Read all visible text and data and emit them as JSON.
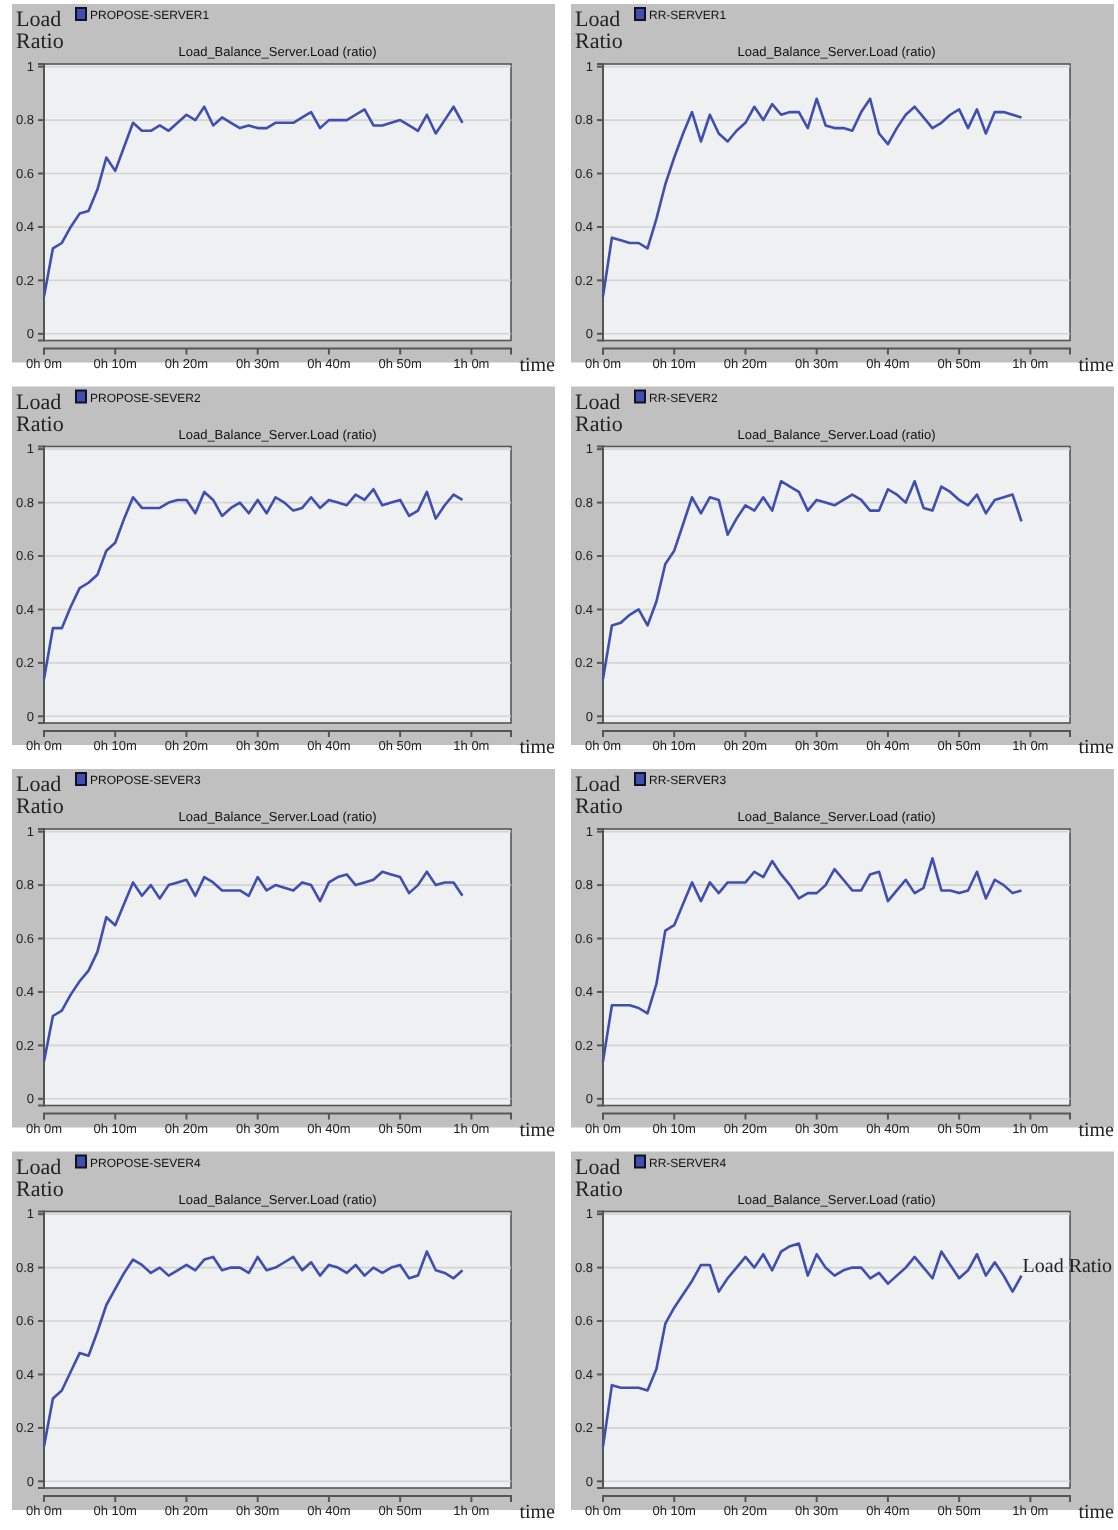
{
  "chart_data": [
    {
      "type": "line",
      "title": "Load_Balance_Server.Load (ratio)",
      "xlabel": "time",
      "ylabel": "Load Ratio",
      "legend": "top left",
      "grid": "y",
      "ylim": [
        -0.025,
        1.01
      ],
      "yticks": [
        0,
        0.2,
        0.4,
        0.6,
        0.8,
        1
      ],
      "categories": [
        "0h 0m",
        null,
        null,
        null,
        null,
        null,
        null,
        null,
        "0h 10m",
        null,
        null,
        null,
        null,
        null,
        null,
        null,
        "0h 20m",
        null,
        null,
        null,
        null,
        null,
        null,
        null,
        "0h 30m",
        null,
        null,
        null,
        null,
        null,
        null,
        null,
        "0h 40m",
        null,
        null,
        null,
        null,
        null,
        null,
        null,
        "0h 50m",
        null,
        null,
        null,
        null,
        null,
        null,
        null,
        "1h 0m",
        null,
        null,
        null,
        null
      ],
      "series": [
        {
          "name": "PROPOSE-SERVER1",
          "color": "#3f4fb0",
          "values": [
            0.14,
            0.32,
            0.34,
            0.4,
            0.45,
            0.46,
            0.54,
            0.66,
            0.61,
            0.7,
            0.79,
            0.76,
            0.76,
            0.78,
            0.76,
            0.79,
            0.82,
            0.8,
            0.85,
            0.78,
            0.81,
            0.79,
            0.77,
            0.78,
            0.77,
            0.77,
            0.79,
            0.79,
            0.79,
            0.81,
            0.83,
            0.77,
            0.8,
            0.8,
            0.8,
            0.82,
            0.84,
            0.78,
            0.78,
            0.79,
            0.8,
            0.78,
            0.76,
            0.82,
            0.75,
            0.8,
            0.85,
            0.79,
            null,
            null,
            null,
            null,
            null
          ]
        }
      ]
    },
    {
      "type": "line",
      "title": "Load_Balance_Server.Load (ratio)",
      "xlabel": "time",
      "ylabel": "Load Ratio",
      "legend": "top left",
      "grid": "y",
      "ylim": [
        -0.025,
        1.01
      ],
      "yticks": [
        0,
        0.2,
        0.4,
        0.6,
        0.8,
        1
      ],
      "categories": [
        "0h 0m",
        null,
        null,
        null,
        null,
        null,
        null,
        null,
        "0h 10m",
        null,
        null,
        null,
        null,
        null,
        null,
        null,
        "0h 20m",
        null,
        null,
        null,
        null,
        null,
        null,
        null,
        "0h 30m",
        null,
        null,
        null,
        null,
        null,
        null,
        null,
        "0h 40m",
        null,
        null,
        null,
        null,
        null,
        null,
        null,
        "0h 50m",
        null,
        null,
        null,
        null,
        null,
        null,
        null,
        "1h 0m",
        null,
        null,
        null,
        null
      ],
      "series": [
        {
          "name": "RR-SERVER1",
          "color": "#3f4fb0",
          "values": [
            0.14,
            0.36,
            0.35,
            0.34,
            0.34,
            0.32,
            0.43,
            0.56,
            0.66,
            0.75,
            0.83,
            0.72,
            0.82,
            0.75,
            0.72,
            0.76,
            0.79,
            0.85,
            0.8,
            0.86,
            0.82,
            0.83,
            0.83,
            0.77,
            0.88,
            0.78,
            0.77,
            0.77,
            0.76,
            0.83,
            0.88,
            0.75,
            0.71,
            0.77,
            0.82,
            0.85,
            0.81,
            0.77,
            0.79,
            0.82,
            0.84,
            0.77,
            0.84,
            0.75,
            0.83,
            0.83,
            0.82,
            0.81,
            null,
            null,
            null,
            null,
            null
          ]
        }
      ]
    },
    {
      "type": "line",
      "title": "Load_Balance_Server.Load (ratio)",
      "xlabel": "time",
      "ylabel": "Load Ratio",
      "legend": "top left",
      "grid": "y",
      "ylim": [
        -0.025,
        1.01
      ],
      "yticks": [
        0,
        0.2,
        0.4,
        0.6,
        0.8,
        1
      ],
      "categories": [
        "0h 0m",
        null,
        null,
        null,
        null,
        null,
        null,
        null,
        "0h 10m",
        null,
        null,
        null,
        null,
        null,
        null,
        null,
        "0h 20m",
        null,
        null,
        null,
        null,
        null,
        null,
        null,
        "0h 30m",
        null,
        null,
        null,
        null,
        null,
        null,
        null,
        "0h 40m",
        null,
        null,
        null,
        null,
        null,
        null,
        null,
        "0h 50m",
        null,
        null,
        null,
        null,
        null,
        null,
        null,
        "1h 0m",
        null,
        null,
        null,
        null
      ],
      "series": [
        {
          "name": "PROPOSE-SEVER2",
          "color": "#3f4fb0",
          "values": [
            0.14,
            0.33,
            0.33,
            0.41,
            0.48,
            0.5,
            0.53,
            0.62,
            0.65,
            0.74,
            0.82,
            0.78,
            0.78,
            0.78,
            0.8,
            0.81,
            0.81,
            0.76,
            0.84,
            0.81,
            0.75,
            0.78,
            0.8,
            0.76,
            0.81,
            0.76,
            0.82,
            0.8,
            0.77,
            0.78,
            0.82,
            0.78,
            0.81,
            0.8,
            0.79,
            0.83,
            0.81,
            0.85,
            0.79,
            0.8,
            0.81,
            0.75,
            0.77,
            0.84,
            0.74,
            0.79,
            0.83,
            0.81,
            null,
            null,
            null,
            null,
            null
          ]
        }
      ]
    },
    {
      "type": "line",
      "title": "Load_Balance_Server.Load (ratio)",
      "xlabel": "time",
      "ylabel": "Load Ratio",
      "legend": "top left",
      "grid": "y",
      "ylim": [
        -0.025,
        1.01
      ],
      "yticks": [
        0,
        0.2,
        0.4,
        0.6,
        0.8,
        1
      ],
      "categories": [
        "0h 0m",
        null,
        null,
        null,
        null,
        null,
        null,
        null,
        "0h 10m",
        null,
        null,
        null,
        null,
        null,
        null,
        null,
        "0h 20m",
        null,
        null,
        null,
        null,
        null,
        null,
        null,
        "0h 30m",
        null,
        null,
        null,
        null,
        null,
        null,
        null,
        "0h 40m",
        null,
        null,
        null,
        null,
        null,
        null,
        null,
        "0h 50m",
        null,
        null,
        null,
        null,
        null,
        null,
        null,
        "1h 0m",
        null,
        null,
        null,
        null
      ],
      "series": [
        {
          "name": "RR-SEVER2",
          "color": "#3f4fb0",
          "values": [
            0.14,
            0.34,
            0.35,
            0.38,
            0.4,
            0.34,
            0.43,
            0.57,
            0.62,
            0.72,
            0.82,
            0.76,
            0.82,
            0.81,
            0.68,
            0.74,
            0.79,
            0.77,
            0.82,
            0.77,
            0.88,
            0.86,
            0.84,
            0.77,
            0.81,
            0.8,
            0.79,
            0.81,
            0.83,
            0.81,
            0.77,
            0.77,
            0.85,
            0.83,
            0.8,
            0.88,
            0.78,
            0.77,
            0.86,
            0.84,
            0.81,
            0.79,
            0.83,
            0.76,
            0.81,
            0.82,
            0.83,
            0.73,
            null,
            null,
            null,
            null,
            null
          ]
        }
      ]
    },
    {
      "type": "line",
      "title": "Load_Balance_Server.Load (ratio)",
      "xlabel": "time",
      "ylabel": "Load Ratio",
      "legend": "top left",
      "grid": "y",
      "ylim": [
        -0.025,
        1.01
      ],
      "yticks": [
        0,
        0.2,
        0.4,
        0.6,
        0.8,
        1
      ],
      "categories": [
        "0h 0m",
        null,
        null,
        null,
        null,
        null,
        null,
        null,
        "0h 10m",
        null,
        null,
        null,
        null,
        null,
        null,
        null,
        "0h 20m",
        null,
        null,
        null,
        null,
        null,
        null,
        null,
        "0h 30m",
        null,
        null,
        null,
        null,
        null,
        null,
        null,
        "0h 40m",
        null,
        null,
        null,
        null,
        null,
        null,
        null,
        "0h 50m",
        null,
        null,
        null,
        null,
        null,
        null,
        null,
        "1h 0m",
        null,
        null,
        null,
        null
      ],
      "series": [
        {
          "name": "PROPOSE-SEVER3",
          "color": "#3f4fb0",
          "values": [
            0.14,
            0.31,
            0.33,
            0.39,
            0.44,
            0.48,
            0.55,
            0.68,
            0.65,
            0.73,
            0.81,
            0.76,
            0.8,
            0.75,
            0.8,
            0.81,
            0.82,
            0.76,
            0.83,
            0.81,
            0.78,
            0.78,
            0.78,
            0.76,
            0.83,
            0.78,
            0.8,
            0.79,
            0.78,
            0.81,
            0.8,
            0.74,
            0.81,
            0.83,
            0.84,
            0.8,
            0.81,
            0.82,
            0.85,
            0.84,
            0.83,
            0.77,
            0.8,
            0.85,
            0.8,
            0.81,
            0.81,
            0.76,
            null,
            null,
            null,
            null,
            null
          ]
        }
      ]
    },
    {
      "type": "line",
      "title": "Load_Balance_Server.Load (ratio)",
      "xlabel": "time",
      "ylabel": "Load Ratio",
      "legend": "top left",
      "grid": "y",
      "ylim": [
        -0.025,
        1.01
      ],
      "yticks": [
        0,
        0.2,
        0.4,
        0.6,
        0.8,
        1
      ],
      "categories": [
        "0h 0m",
        null,
        null,
        null,
        null,
        null,
        null,
        null,
        "0h 10m",
        null,
        null,
        null,
        null,
        null,
        null,
        null,
        "0h 20m",
        null,
        null,
        null,
        null,
        null,
        null,
        null,
        "0h 30m",
        null,
        null,
        null,
        null,
        null,
        null,
        null,
        "0h 40m",
        null,
        null,
        null,
        null,
        null,
        null,
        null,
        "0h 50m",
        null,
        null,
        null,
        null,
        null,
        null,
        null,
        "1h 0m",
        null,
        null,
        null,
        null
      ],
      "series": [
        {
          "name": "RR-SERVER3",
          "color": "#3f4fb0",
          "values": [
            0.14,
            0.35,
            0.35,
            0.35,
            0.34,
            0.32,
            0.43,
            0.63,
            0.65,
            0.73,
            0.81,
            0.74,
            0.81,
            0.77,
            0.81,
            0.81,
            0.81,
            0.85,
            0.83,
            0.89,
            0.84,
            0.8,
            0.75,
            0.77,
            0.77,
            0.8,
            0.86,
            0.82,
            0.78,
            0.78,
            0.84,
            0.85,
            0.74,
            0.78,
            0.82,
            0.77,
            0.79,
            0.9,
            0.78,
            0.78,
            0.77,
            0.78,
            0.85,
            0.75,
            0.82,
            0.8,
            0.77,
            0.78,
            null,
            null,
            null,
            null,
            null
          ]
        }
      ]
    },
    {
      "type": "line",
      "title": "Load_Balance_Server.Load (ratio)",
      "xlabel": "time",
      "ylabel": "Load Ratio",
      "legend": "top left",
      "grid": "y",
      "ylim": [
        -0.025,
        1.01
      ],
      "yticks": [
        0,
        0.2,
        0.4,
        0.6,
        0.8,
        1
      ],
      "categories": [
        "0h 0m",
        null,
        null,
        null,
        null,
        null,
        null,
        null,
        "0h 10m",
        null,
        null,
        null,
        null,
        null,
        null,
        null,
        "0h 20m",
        null,
        null,
        null,
        null,
        null,
        null,
        null,
        "0h 30m",
        null,
        null,
        null,
        null,
        null,
        null,
        null,
        "0h 40m",
        null,
        null,
        null,
        null,
        null,
        null,
        null,
        "0h 50m",
        null,
        null,
        null,
        null,
        null,
        null,
        null,
        "1h 0m",
        null,
        null,
        null,
        null
      ],
      "series": [
        {
          "name": "PROPOSE-SEVER4",
          "color": "#3f4fb0",
          "values": [
            0.13,
            0.31,
            0.34,
            0.41,
            0.48,
            0.47,
            0.56,
            0.66,
            0.72,
            0.78,
            0.83,
            0.81,
            0.78,
            0.8,
            0.77,
            0.79,
            0.81,
            0.79,
            0.83,
            0.84,
            0.79,
            0.8,
            0.8,
            0.78,
            0.84,
            0.79,
            0.8,
            0.82,
            0.84,
            0.79,
            0.82,
            0.77,
            0.81,
            0.8,
            0.78,
            0.81,
            0.77,
            0.8,
            0.78,
            0.8,
            0.81,
            0.76,
            0.77,
            0.86,
            0.79,
            0.78,
            0.76,
            0.79,
            null,
            null,
            null,
            null,
            null
          ]
        }
      ]
    },
    {
      "type": "line",
      "title": "Load_Balance_Server.Load (ratio)",
      "xlabel": "time",
      "ylabel": "Load Ratio",
      "legend": "top left",
      "grid": "y",
      "ylim": [
        -0.025,
        1.01
      ],
      "yticks": [
        0,
        0.2,
        0.4,
        0.6,
        0.8,
        1
      ],
      "annotations": [
        "Load Ratio"
      ],
      "categories": [
        "0h 0m",
        null,
        null,
        null,
        null,
        null,
        null,
        null,
        "0h 10m",
        null,
        null,
        null,
        null,
        null,
        null,
        null,
        "0h 20m",
        null,
        null,
        null,
        null,
        null,
        null,
        null,
        "0h 30m",
        null,
        null,
        null,
        null,
        null,
        null,
        null,
        "0h 40m",
        null,
        null,
        null,
        null,
        null,
        null,
        null,
        "0h 50m",
        null,
        null,
        null,
        null,
        null,
        null,
        null,
        "1h 0m",
        null,
        null,
        null,
        null
      ],
      "series": [
        {
          "name": "RR-SERVER4",
          "color": "#3f4fb0",
          "values": [
            0.13,
            0.36,
            0.35,
            0.35,
            0.35,
            0.34,
            0.42,
            0.59,
            0.65,
            0.7,
            0.75,
            0.81,
            0.81,
            0.71,
            0.76,
            0.8,
            0.84,
            0.8,
            0.85,
            0.79,
            0.86,
            0.88,
            0.89,
            0.77,
            0.85,
            0.8,
            0.77,
            0.79,
            0.8,
            0.8,
            0.76,
            0.78,
            0.74,
            0.77,
            0.8,
            0.84,
            0.8,
            0.76,
            0.86,
            0.81,
            0.76,
            0.79,
            0.85,
            0.77,
            0.82,
            0.77,
            0.71,
            0.77,
            null,
            null,
            null,
            null,
            null
          ]
        }
      ]
    }
  ]
}
